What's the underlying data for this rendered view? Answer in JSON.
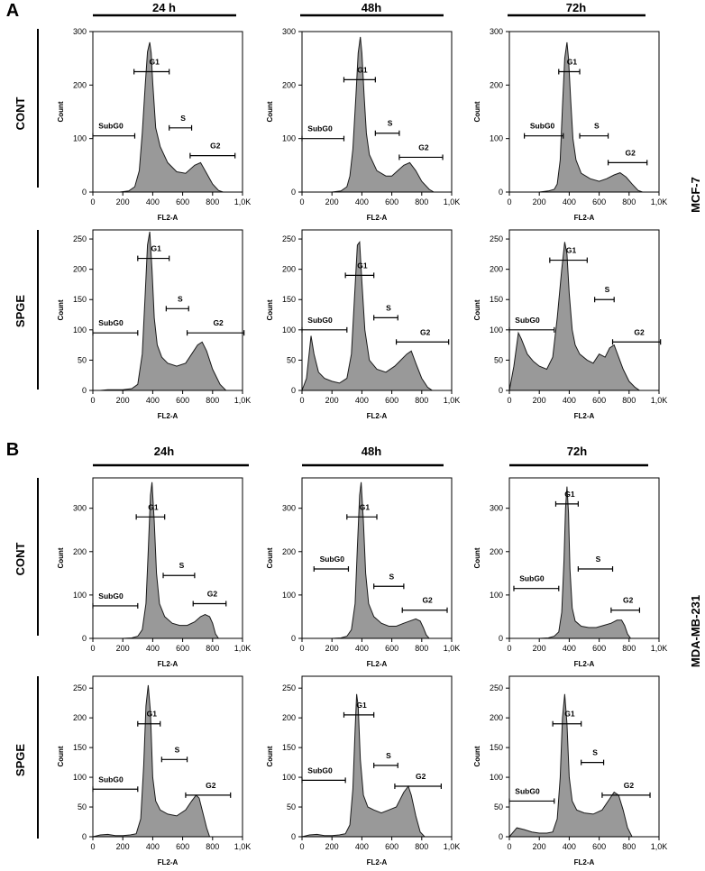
{
  "figure": {
    "panels": [
      "A",
      "B"
    ],
    "timepoints": [
      [
        "24 h",
        "48h",
        "72h"
      ],
      [
        "24h",
        "48h",
        "72h"
      ]
    ],
    "conditions": [
      "CONT",
      "SPGE"
    ],
    "cell_lines": [
      "MCF-7",
      "MDA-MB-231"
    ]
  },
  "colors": {
    "fill": "#999999",
    "stroke": "#1a1a1a",
    "text": "#000000"
  },
  "chart_data": [
    {
      "type": "area",
      "panel": "A",
      "cell_line": "MCF-7",
      "condition": "CONT",
      "timepoint": "24 h",
      "xlabel": "FL2-A",
      "ylabel": "Count",
      "xlim": [
        0,
        1000
      ],
      "xticks": [
        "0",
        "200",
        "400",
        "600",
        "800",
        "1,0K"
      ],
      "ylim": [
        0,
        300
      ],
      "yticks": [
        0,
        100,
        200,
        300
      ],
      "x": [
        0,
        60,
        120,
        180,
        240,
        280,
        310,
        330,
        350,
        365,
        380,
        390,
        400,
        420,
        450,
        500,
        560,
        620,
        680,
        720,
        760,
        800,
        840,
        870
      ],
      "y": [
        0,
        0,
        0,
        0,
        2,
        10,
        40,
        110,
        200,
        262,
        280,
        260,
        205,
        120,
        85,
        55,
        38,
        35,
        50,
        55,
        35,
        15,
        3,
        0
      ],
      "gates": [
        {
          "label": "SubG0",
          "x0": 0,
          "x1": 280,
          "y": 105
        },
        {
          "label": "G1",
          "x0": 275,
          "x1": 510,
          "y": 225
        },
        {
          "label": "S",
          "x0": 510,
          "x1": 660,
          "y": 120
        },
        {
          "label": "G2",
          "x0": 650,
          "x1": 950,
          "y": 68
        }
      ]
    },
    {
      "type": "area",
      "panel": "A",
      "cell_line": "MCF-7",
      "condition": "CONT",
      "timepoint": "48h",
      "xlabel": "FL2-A",
      "ylabel": "Count",
      "xlim": [
        0,
        1000
      ],
      "xticks": [
        "0",
        "200",
        "400",
        "600",
        "800",
        "1,0K"
      ],
      "ylim": [
        0,
        300
      ],
      "yticks": [
        0,
        100,
        200,
        300
      ],
      "x": [
        0,
        100,
        200,
        260,
        300,
        320,
        340,
        360,
        375,
        390,
        400,
        415,
        430,
        450,
        500,
        560,
        600,
        640,
        680,
        720,
        760,
        800,
        850,
        880
      ],
      "y": [
        0,
        0,
        0,
        2,
        10,
        30,
        80,
        180,
        260,
        290,
        260,
        180,
        110,
        70,
        40,
        30,
        30,
        40,
        50,
        55,
        40,
        20,
        5,
        0
      ],
      "gates": [
        {
          "label": "SubG0",
          "x0": 0,
          "x1": 280,
          "y": 100
        },
        {
          "label": "G1",
          "x0": 280,
          "x1": 490,
          "y": 210
        },
        {
          "label": "S",
          "x0": 490,
          "x1": 650,
          "y": 110
        },
        {
          "label": "G2",
          "x0": 650,
          "x1": 940,
          "y": 65
        }
      ]
    },
    {
      "type": "area",
      "panel": "A",
      "cell_line": "MCF-7",
      "condition": "CONT",
      "timepoint": "72h",
      "xlabel": "FL2-A",
      "ylabel": "Count",
      "xlim": [
        0,
        1000
      ],
      "xticks": [
        "0",
        "200",
        "400",
        "600",
        "800",
        "1,0K"
      ],
      "ylim": [
        0,
        300
      ],
      "yticks": [
        0,
        100,
        200,
        300
      ],
      "x": [
        0,
        100,
        200,
        260,
        300,
        320,
        340,
        355,
        370,
        385,
        395,
        410,
        425,
        445,
        480,
        540,
        600,
        650,
        700,
        740,
        780,
        820,
        860,
        890
      ],
      "y": [
        0,
        0,
        0,
        2,
        5,
        15,
        60,
        160,
        250,
        280,
        250,
        170,
        100,
        60,
        35,
        25,
        20,
        25,
        32,
        36,
        28,
        15,
        3,
        0
      ],
      "gates": [
        {
          "label": "SubG0",
          "x0": 100,
          "x1": 360,
          "y": 105
        },
        {
          "label": "G1",
          "x0": 330,
          "x1": 470,
          "y": 225
        },
        {
          "label": "S",
          "x0": 470,
          "x1": 660,
          "y": 105
        },
        {
          "label": "G2",
          "x0": 660,
          "x1": 920,
          "y": 55
        }
      ]
    },
    {
      "type": "area",
      "panel": "A",
      "cell_line": "MCF-7",
      "condition": "SPGE",
      "timepoint": "24 h",
      "xlabel": "FL2-A",
      "ylabel": "Count",
      "xlim": [
        0,
        1000
      ],
      "xticks": [
        "0",
        "200",
        "400",
        "600",
        "800",
        "1,0K"
      ],
      "ylim": [
        0,
        265
      ],
      "yticks": [
        0,
        50,
        100,
        150,
        200,
        250
      ],
      "x": [
        0,
        50,
        100,
        200,
        260,
        300,
        330,
        350,
        365,
        380,
        395,
        410,
        430,
        460,
        500,
        560,
        620,
        660,
        700,
        730,
        760,
        800,
        850,
        890
      ],
      "y": [
        0,
        0,
        1,
        1,
        3,
        10,
        60,
        160,
        240,
        262,
        200,
        120,
        75,
        55,
        45,
        40,
        45,
        60,
        75,
        80,
        65,
        35,
        10,
        0
      ],
      "gates": [
        {
          "label": "SubG0",
          "x0": 0,
          "x1": 300,
          "y": 95
        },
        {
          "label": "G1",
          "x0": 300,
          "x1": 510,
          "y": 218
        },
        {
          "label": "S",
          "x0": 490,
          "x1": 640,
          "y": 135
        },
        {
          "label": "G2",
          "x0": 630,
          "x1": 1010,
          "y": 95
        }
      ]
    },
    {
      "type": "area",
      "panel": "A",
      "cell_line": "MCF-7",
      "condition": "SPGE",
      "timepoint": "48h",
      "xlabel": "FL2-A",
      "ylabel": "Count",
      "xlim": [
        0,
        1000
      ],
      "xticks": [
        "0",
        "200",
        "400",
        "600",
        "800",
        "1,0K"
      ],
      "ylim": [
        0,
        265
      ],
      "yticks": [
        0,
        50,
        100,
        150,
        200,
        250
      ],
      "x": [
        0,
        30,
        60,
        80,
        110,
        150,
        200,
        250,
        300,
        330,
        350,
        370,
        385,
        400,
        420,
        450,
        500,
        560,
        620,
        660,
        700,
        730,
        760,
        800,
        840,
        870
      ],
      "y": [
        0,
        20,
        90,
        60,
        30,
        20,
        15,
        12,
        20,
        60,
        150,
        240,
        245,
        180,
        100,
        50,
        35,
        30,
        40,
        50,
        60,
        65,
        45,
        20,
        5,
        0
      ],
      "gates": [
        {
          "label": "SubG0",
          "x0": 0,
          "x1": 300,
          "y": 100
        },
        {
          "label": "G1",
          "x0": 290,
          "x1": 480,
          "y": 190
        },
        {
          "label": "S",
          "x0": 480,
          "x1": 640,
          "y": 120
        },
        {
          "label": "G2",
          "x0": 630,
          "x1": 980,
          "y": 80
        }
      ]
    },
    {
      "type": "area",
      "panel": "A",
      "cell_line": "MCF-7",
      "condition": "SPGE",
      "timepoint": "72h",
      "xlabel": "FL2-A",
      "ylabel": "Count",
      "xlim": [
        0,
        1000
      ],
      "xticks": [
        "0",
        "200",
        "400",
        "600",
        "800",
        "1,0K"
      ],
      "ylim": [
        0,
        265
      ],
      "yticks": [
        0,
        50,
        100,
        150,
        200,
        250
      ],
      "x": [
        0,
        30,
        60,
        80,
        120,
        160,
        200,
        250,
        290,
        320,
        350,
        370,
        385,
        400,
        420,
        440,
        470,
        520,
        560,
        600,
        640,
        670,
        700,
        730,
        760,
        800,
        840,
        870
      ],
      "y": [
        0,
        40,
        95,
        85,
        60,
        48,
        40,
        35,
        55,
        120,
        200,
        245,
        225,
        160,
        100,
        75,
        60,
        50,
        45,
        60,
        55,
        70,
        75,
        55,
        35,
        15,
        5,
        0
      ],
      "gates": [
        {
          "label": "SubG0",
          "x0": 0,
          "x1": 300,
          "y": 100
        },
        {
          "label": "G1",
          "x0": 270,
          "x1": 520,
          "y": 215
        },
        {
          "label": "S",
          "x0": 570,
          "x1": 700,
          "y": 150
        },
        {
          "label": "G2",
          "x0": 690,
          "x1": 1010,
          "y": 80
        }
      ]
    },
    {
      "type": "area",
      "panel": "B",
      "cell_line": "MDA-MB-231",
      "condition": "CONT",
      "timepoint": "24h",
      "xlabel": "FL2-A",
      "ylabel": "Count",
      "xlim": [
        0,
        1000
      ],
      "xticks": [
        "0",
        "200",
        "400",
        "600",
        "800",
        "1,0K"
      ],
      "ylim": [
        0,
        370
      ],
      "yticks": [
        0,
        100,
        200,
        300
      ],
      "x": [
        0,
        100,
        200,
        260,
        300,
        330,
        355,
        370,
        385,
        395,
        410,
        425,
        445,
        480,
        530,
        580,
        630,
        680,
        720,
        750,
        780,
        800,
        820,
        840
      ],
      "y": [
        0,
        0,
        0,
        1,
        5,
        20,
        80,
        200,
        330,
        360,
        270,
        150,
        80,
        50,
        35,
        30,
        30,
        38,
        50,
        55,
        50,
        35,
        10,
        0
      ],
      "gates": [
        {
          "label": "SubG0",
          "x0": 0,
          "x1": 300,
          "y": 75
        },
        {
          "label": "G1",
          "x0": 290,
          "x1": 480,
          "y": 280
        },
        {
          "label": "S",
          "x0": 470,
          "x1": 680,
          "y": 145
        },
        {
          "label": "G2",
          "x0": 670,
          "x1": 890,
          "y": 80
        }
      ]
    },
    {
      "type": "area",
      "panel": "B",
      "cell_line": "MDA-MB-231",
      "condition": "CONT",
      "timepoint": "48h",
      "xlabel": "FL2-A",
      "ylabel": "Count",
      "xlim": [
        0,
        1000
      ],
      "xticks": [
        "0",
        "200",
        "400",
        "600",
        "800",
        "1,0K"
      ],
      "ylim": [
        0,
        370
      ],
      "yticks": [
        0,
        100,
        200,
        300
      ],
      "x": [
        0,
        100,
        200,
        260,
        300,
        330,
        355,
        370,
        385,
        395,
        410,
        425,
        445,
        480,
        530,
        580,
        630,
        680,
        720,
        760,
        790,
        810,
        830,
        850
      ],
      "y": [
        0,
        0,
        0,
        1,
        5,
        20,
        80,
        210,
        330,
        360,
        270,
        150,
        80,
        50,
        35,
        28,
        28,
        35,
        40,
        45,
        40,
        25,
        8,
        0
      ],
      "gates": [
        {
          "label": "SubG0",
          "x0": 80,
          "x1": 310,
          "y": 160
        },
        {
          "label": "G1",
          "x0": 300,
          "x1": 500,
          "y": 280
        },
        {
          "label": "S",
          "x0": 480,
          "x1": 680,
          "y": 120
        },
        {
          "label": "G2",
          "x0": 670,
          "x1": 970,
          "y": 65
        }
      ]
    },
    {
      "type": "area",
      "panel": "B",
      "cell_line": "MDA-MB-231",
      "condition": "CONT",
      "timepoint": "72h",
      "xlabel": "FL2-A",
      "ylabel": "Count",
      "xlim": [
        0,
        1000
      ],
      "xticks": [
        "0",
        "200",
        "400",
        "600",
        "800",
        "1,0K"
      ],
      "ylim": [
        0,
        370
      ],
      "yticks": [
        0,
        100,
        200,
        300
      ],
      "x": [
        0,
        100,
        200,
        260,
        300,
        330,
        350,
        365,
        375,
        385,
        395,
        405,
        420,
        440,
        480,
        530,
        580,
        630,
        680,
        720,
        750,
        770,
        790,
        810
      ],
      "y": [
        0,
        0,
        0,
        1,
        5,
        15,
        60,
        180,
        300,
        350,
        290,
        160,
        70,
        40,
        28,
        25,
        25,
        30,
        35,
        42,
        42,
        30,
        10,
        0
      ],
      "gates": [
        {
          "label": "SubG0",
          "x0": 30,
          "x1": 330,
          "y": 115
        },
        {
          "label": "G1",
          "x0": 310,
          "x1": 460,
          "y": 310
        },
        {
          "label": "S",
          "x0": 460,
          "x1": 690,
          "y": 160
        },
        {
          "label": "G2",
          "x0": 680,
          "x1": 870,
          "y": 65
        }
      ]
    },
    {
      "type": "area",
      "panel": "B",
      "cell_line": "MDA-MB-231",
      "condition": "SPGE",
      "timepoint": "24h",
      "xlabel": "FL2-A",
      "ylabel": "Count",
      "xlim": [
        0,
        1000
      ],
      "xticks": [
        "0",
        "200",
        "400",
        "600",
        "800",
        "1,0K"
      ],
      "ylim": [
        0,
        270
      ],
      "yticks": [
        0,
        50,
        100,
        150,
        200,
        250
      ],
      "x": [
        0,
        50,
        100,
        150,
        200,
        250,
        290,
        320,
        340,
        355,
        370,
        385,
        400,
        420,
        450,
        500,
        560,
        620,
        660,
        690,
        710,
        730,
        760,
        780
      ],
      "y": [
        0,
        3,
        4,
        2,
        2,
        3,
        5,
        30,
        120,
        220,
        255,
        210,
        100,
        60,
        45,
        38,
        35,
        45,
        60,
        70,
        65,
        45,
        15,
        0
      ],
      "gates": [
        {
          "label": "SubG0",
          "x0": 0,
          "x1": 300,
          "y": 80
        },
        {
          "label": "G1",
          "x0": 300,
          "x1": 450,
          "y": 190
        },
        {
          "label": "S",
          "x0": 460,
          "x1": 630,
          "y": 130
        },
        {
          "label": "G2",
          "x0": 620,
          "x1": 920,
          "y": 70
        }
      ]
    },
    {
      "type": "area",
      "panel": "B",
      "cell_line": "MDA-MB-231",
      "condition": "SPGE",
      "timepoint": "48h",
      "xlabel": "FL2-A",
      "ylabel": "Count",
      "xlim": [
        0,
        1000
      ],
      "xticks": [
        "0",
        "200",
        "400",
        "600",
        "800",
        "1,0K"
      ],
      "ylim": [
        0,
        270
      ],
      "yticks": [
        0,
        50,
        100,
        150,
        200,
        250
      ],
      "x": [
        0,
        50,
        100,
        150,
        200,
        250,
        290,
        320,
        340,
        355,
        365,
        375,
        390,
        410,
        440,
        480,
        530,
        580,
        630,
        680,
        710,
        730,
        760,
        790,
        820
      ],
      "y": [
        0,
        3,
        4,
        2,
        2,
        3,
        5,
        20,
        80,
        180,
        240,
        220,
        130,
        70,
        50,
        45,
        40,
        45,
        50,
        75,
        85,
        70,
        35,
        8,
        0
      ],
      "gates": [
        {
          "label": "SubG0",
          "x0": 0,
          "x1": 290,
          "y": 95
        },
        {
          "label": "G1",
          "x0": 280,
          "x1": 480,
          "y": 205
        },
        {
          "label": "S",
          "x0": 480,
          "x1": 640,
          "y": 120
        },
        {
          "label": "G2",
          "x0": 620,
          "x1": 930,
          "y": 85
        }
      ]
    },
    {
      "type": "area",
      "panel": "B",
      "cell_line": "MDA-MB-231",
      "condition": "SPGE",
      "timepoint": "72h",
      "xlabel": "FL2-A",
      "ylabel": "Count",
      "xlim": [
        0,
        1000
      ],
      "xticks": [
        "0",
        "200",
        "400",
        "600",
        "800",
        "1,0K"
      ],
      "ylim": [
        0,
        270
      ],
      "yticks": [
        0,
        50,
        100,
        150,
        200,
        250
      ],
      "x": [
        0,
        50,
        100,
        150,
        200,
        250,
        290,
        320,
        340,
        355,
        370,
        385,
        400,
        420,
        450,
        500,
        560,
        620,
        660,
        700,
        730,
        760,
        790,
        820
      ],
      "y": [
        0,
        15,
        12,
        8,
        6,
        6,
        8,
        30,
        100,
        200,
        240,
        190,
        100,
        60,
        45,
        40,
        38,
        45,
        60,
        75,
        70,
        45,
        15,
        0
      ],
      "gates": [
        {
          "label": "SubG0",
          "x0": 0,
          "x1": 300,
          "y": 60
        },
        {
          "label": "G1",
          "x0": 290,
          "x1": 480,
          "y": 190
        },
        {
          "label": "S",
          "x0": 480,
          "x1": 630,
          "y": 125
        },
        {
          "label": "G2",
          "x0": 620,
          "x1": 940,
          "y": 70
        }
      ]
    }
  ]
}
